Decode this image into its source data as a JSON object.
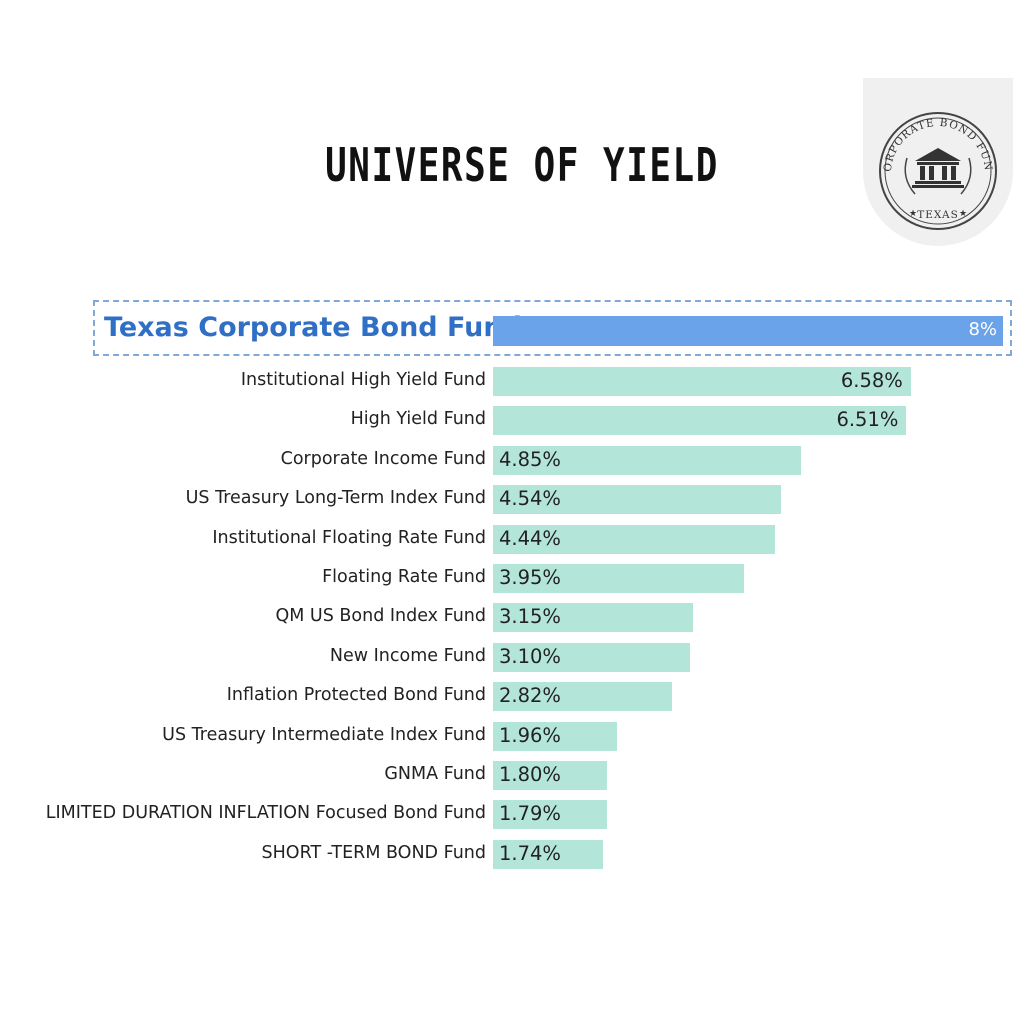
{
  "title": "UNIVERSE OF YIELD",
  "logo": {
    "arc_text": "CORPORATE BOND FUND",
    "bottom_text": "TEXAS",
    "icon": "courthouse-columns-icon"
  },
  "colors": {
    "highlight_bar": "#6aa3ea",
    "highlight_text": "#2f6fc5",
    "bar": "#b3e6d9",
    "highlight_border": "#7fa9d9"
  },
  "chart_data": {
    "type": "bar",
    "orientation": "horizontal",
    "title": "UNIVERSE OF YIELD",
    "categories": [
      "Texas Corporate Bond Fund",
      "Institutional High Yield Fund",
      "High Yield Fund",
      "Corporate Income Fund",
      "US Treasury Long-Term Index Fund",
      "Institutional Floating Rate Fund",
      "Floating Rate Fund",
      "QM US Bond Index Fund",
      "New Income Fund",
      "Inflation Protected Bond Fund",
      "US Treasury Intermediate Index Fund",
      "GNMA Fund",
      "LIMITED DURATION INFLATION Focused Bond Fund",
      "SHORT -TERM BOND Fund"
    ],
    "values": [
      8,
      6.58,
      6.51,
      4.85,
      4.54,
      4.44,
      3.95,
      3.15,
      3.1,
      2.82,
      1.96,
      1.8,
      1.79,
      1.74
    ],
    "value_labels": [
      "8%",
      "6.58%",
      "6.51%",
      "4.85%",
      "4.54%",
      "4.44%",
      "3.95%",
      "3.15%",
      "3.10%",
      "2.82%",
      "1.96%",
      "1.80%",
      "1.79%",
      "1.74%"
    ],
    "highlighted_index": 0,
    "xlim": [
      0,
      8
    ],
    "grid": false,
    "legend": "none"
  }
}
